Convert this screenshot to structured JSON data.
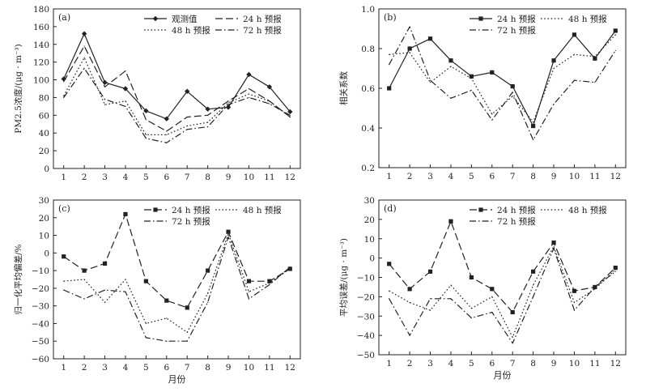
{
  "figure": {
    "panel_count": 4
  },
  "chart_data": [
    {
      "id": "a",
      "type": "line",
      "panel_label": "(a)",
      "ylabel": "PM2.5浓度/(μg · m⁻³)",
      "xlabel": "",
      "x": [
        1,
        2,
        3,
        4,
        5,
        6,
        7,
        8,
        9,
        10,
        11,
        12
      ],
      "xticks": [
        "1",
        "2",
        "3",
        "4",
        "5",
        "6",
        "7",
        "8",
        "9",
        "10",
        "11",
        "12"
      ],
      "ylim": [
        0,
        180
      ],
      "yticks": [
        0,
        20,
        40,
        60,
        80,
        100,
        120,
        140,
        160,
        180
      ],
      "ytick_labels": [
        "0",
        "20",
        "40",
        "60",
        "80",
        "100",
        "120",
        "140",
        "160",
        "180"
      ],
      "legend_position": "top-right",
      "legend_columns": 2,
      "series": [
        {
          "name": "观测值",
          "style": "solid",
          "marker": "diamond",
          "values": [
            101,
            152,
            97,
            90,
            65,
            56,
            87,
            67,
            69,
            106,
            92,
            64
          ]
        },
        {
          "name": "24 h 预报",
          "style": "dash",
          "marker": "none",
          "values": [
            98,
            138,
            92,
            110,
            55,
            42,
            58,
            60,
            76,
            90,
            76,
            58
          ]
        },
        {
          "name": "48 h 预报",
          "style": "dot",
          "marker": "none",
          "values": [
            82,
            125,
            72,
            76,
            38,
            38,
            48,
            52,
            74,
            84,
            76,
            58
          ]
        },
        {
          "name": "72 h 预报",
          "style": "dashdot",
          "marker": "none",
          "values": [
            80,
            113,
            78,
            70,
            34,
            29,
            44,
            47,
            72,
            80,
            73,
            60
          ]
        }
      ]
    },
    {
      "id": "b",
      "type": "line",
      "panel_label": "(b)",
      "ylabel": "相关系数",
      "xlabel": "",
      "x": [
        1,
        2,
        3,
        4,
        5,
        6,
        7,
        8,
        9,
        10,
        11,
        12
      ],
      "xticks": [
        "1",
        "2",
        "3",
        "4",
        "5",
        "6",
        "7",
        "8",
        "9",
        "10",
        "11",
        "12"
      ],
      "ylim": [
        0.2,
        1.0
      ],
      "yticks": [
        0.2,
        0.4,
        0.6,
        0.8,
        1.0
      ],
      "ytick_labels": [
        "0.2",
        "0.4",
        "0.6",
        "0.8",
        "1.0"
      ],
      "legend_position": "top-right",
      "legend_columns": 2,
      "series": [
        {
          "name": "24 h 预报",
          "style": "solid",
          "marker": "square",
          "values": [
            0.6,
            0.8,
            0.85,
            0.74,
            0.66,
            0.68,
            0.61,
            0.41,
            0.74,
            0.87,
            0.75,
            0.89
          ]
        },
        {
          "name": "48 h 预报",
          "style": "dot",
          "marker": "none",
          "values": [
            0.77,
            0.78,
            0.63,
            0.71,
            0.65,
            0.47,
            0.56,
            0.43,
            0.7,
            0.77,
            0.76,
            0.87
          ]
        },
        {
          "name": "72 h 预报",
          "style": "dashdot",
          "marker": "none",
          "values": [
            0.72,
            0.91,
            0.64,
            0.55,
            0.59,
            0.44,
            0.58,
            0.34,
            0.52,
            0.64,
            0.63,
            0.79
          ]
        }
      ]
    },
    {
      "id": "c",
      "type": "line",
      "panel_label": "(c)",
      "ylabel": "归一化平均偏差/%",
      "xlabel": "月份",
      "x": [
        1,
        2,
        3,
        4,
        5,
        6,
        7,
        8,
        9,
        10,
        11,
        12
      ],
      "xticks": [
        "1",
        "2",
        "3",
        "4",
        "5",
        "6",
        "7",
        "8",
        "9",
        "10",
        "11",
        "12"
      ],
      "ylim": [
        -60,
        30
      ],
      "yticks": [
        -60,
        -50,
        -40,
        -30,
        -20,
        -10,
        0,
        10,
        20,
        30
      ],
      "ytick_labels": [
        "−60",
        "−50",
        "−40",
        "−30",
        "−20",
        "−10",
        "0",
        "10",
        "20",
        "30"
      ],
      "legend_position": "top-right",
      "legend_columns": 2,
      "series": [
        {
          "name": "24 h 预报",
          "style": "dash",
          "marker": "square",
          "values": [
            -2,
            -10,
            -6,
            22,
            -16,
            -27,
            -31,
            -10,
            12,
            -16,
            -16,
            -9
          ]
        },
        {
          "name": "48 h 预报",
          "style": "dot",
          "marker": "none",
          "values": [
            -16,
            -15,
            -28,
            -15,
            -40,
            -37,
            -45,
            -23,
            11,
            -22,
            -17,
            -9
          ]
        },
        {
          "name": "72 h 预报",
          "style": "dashdot",
          "marker": "none",
          "values": [
            -21,
            -26,
            -21,
            -22,
            -48,
            -50,
            -50,
            -28,
            9,
            -26,
            -18,
            -8
          ]
        }
      ]
    },
    {
      "id": "d",
      "type": "line",
      "panel_label": "(d)",
      "ylabel": "平均误差/(μg · m⁻³)",
      "xlabel": "月份",
      "x": [
        1,
        2,
        3,
        4,
        5,
        6,
        7,
        8,
        9,
        10,
        11,
        12
      ],
      "xticks": [
        "1",
        "2",
        "3",
        "4",
        "5",
        "6",
        "7",
        "8",
        "9",
        "10",
        "11",
        "12"
      ],
      "ylim": [
        -50,
        30
      ],
      "yticks": [
        -50,
        -40,
        -30,
        -20,
        -10,
        0,
        10,
        20,
        30
      ],
      "ytick_labels": [
        "−50",
        "−40",
        "−30",
        "−20",
        "−10",
        "0",
        "10",
        "20",
        "30"
      ],
      "legend_position": "top-right",
      "legend_columns": 2,
      "series": [
        {
          "name": "24 h 预报",
          "style": "dash",
          "marker": "square",
          "values": [
            -3,
            -16,
            -7,
            19,
            -10,
            -16,
            -28,
            -7,
            8,
            -17,
            -15,
            -5
          ]
        },
        {
          "name": "48 h 预报",
          "style": "dot",
          "marker": "none",
          "values": [
            -17,
            -23,
            -27,
            -14,
            -26,
            -20,
            -41,
            -14,
            6,
            -23,
            -16,
            -6
          ]
        },
        {
          "name": "72 h 预报",
          "style": "dashdot",
          "marker": "none",
          "values": [
            -21,
            -40,
            -21,
            -21,
            -31,
            -28,
            -44,
            -20,
            5,
            -27,
            -15,
            -7
          ]
        }
      ]
    }
  ]
}
